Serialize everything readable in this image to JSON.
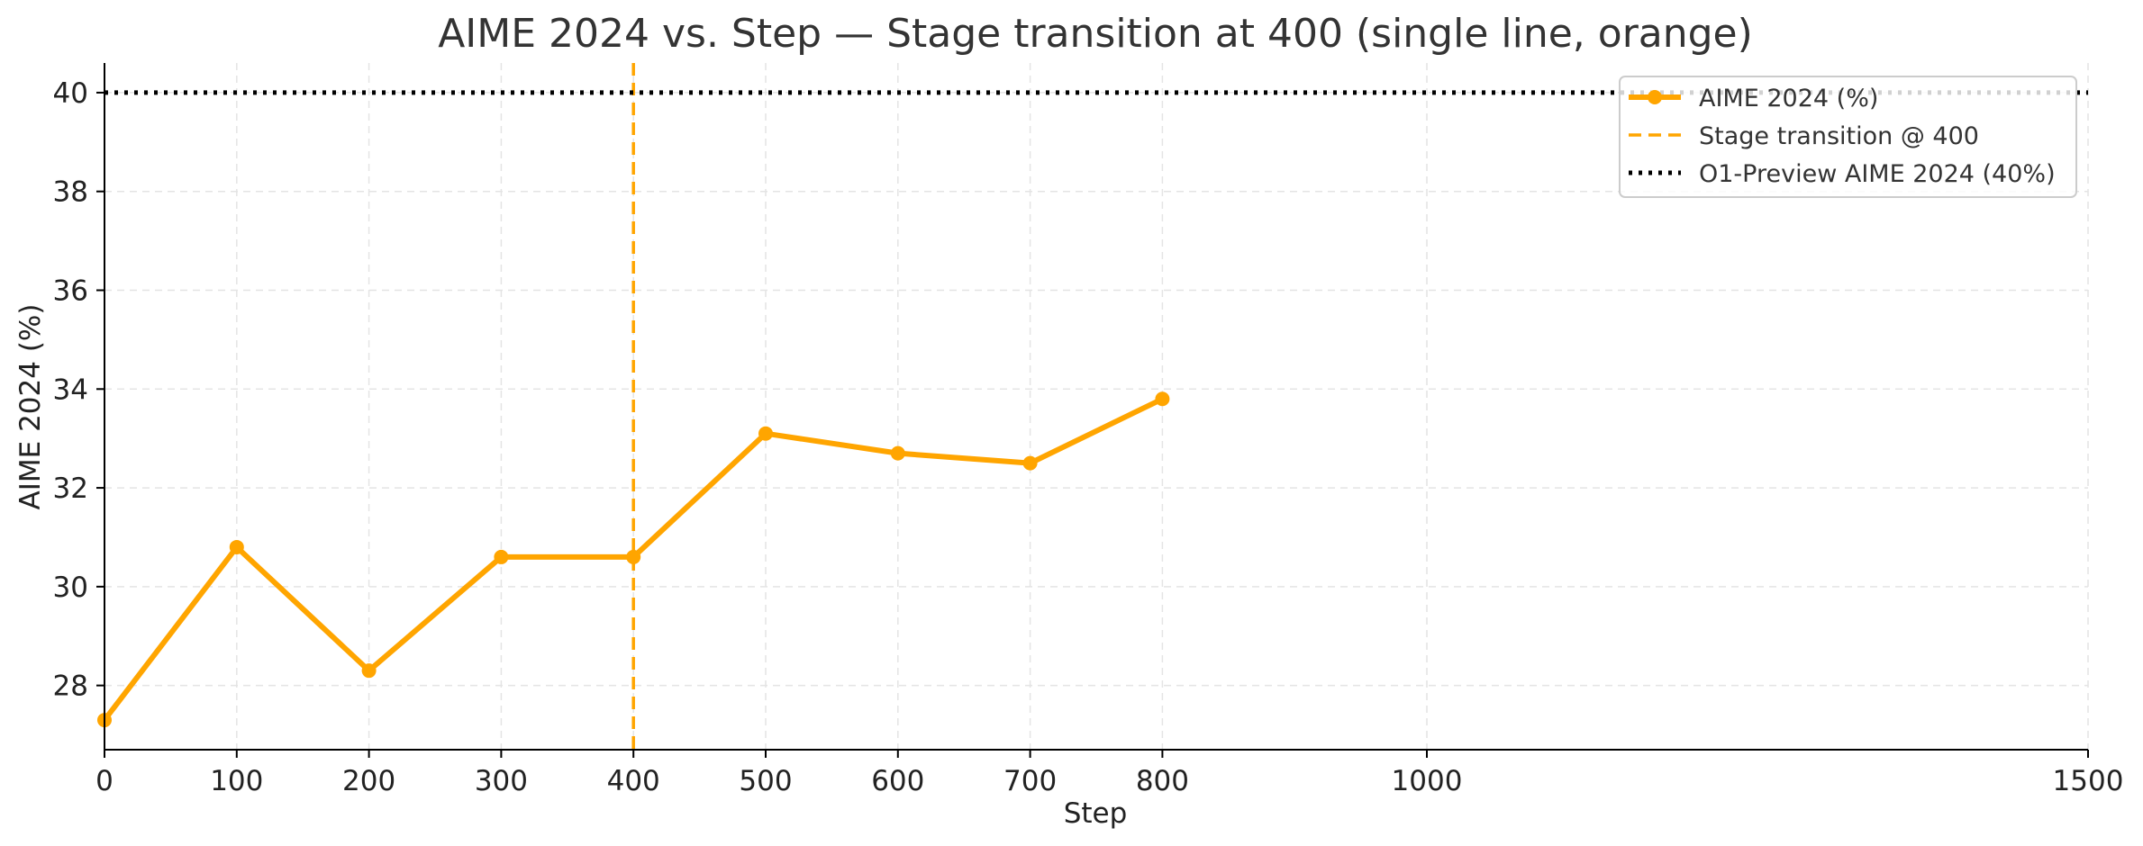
{
  "chart_data": {
    "type": "line",
    "title": "AIME 2024 vs. Step — Stage transition at 400 (single line, orange)",
    "xlabel": "Step",
    "ylabel": "AIME 2024 (%)",
    "xlim": [
      0,
      1500
    ],
    "ylim": [
      26.7,
      40.6
    ],
    "x_ticks": [
      0,
      100,
      200,
      300,
      400,
      500,
      600,
      700,
      800,
      1000,
      1500
    ],
    "y_ticks": [
      28,
      30,
      32,
      34,
      36,
      38,
      40
    ],
    "grid": true,
    "legend_position": "top-right",
    "colors": {
      "series": "#FFA500",
      "reference": "#000000",
      "grid": "#e4e4e4"
    },
    "series": [
      {
        "name": "AIME 2024 (%)",
        "x": [
          0,
          100,
          200,
          300,
          400,
          500,
          600,
          700,
          800
        ],
        "values": [
          27.3,
          30.8,
          28.3,
          30.6,
          30.6,
          33.1,
          32.7,
          32.5,
          33.8
        ],
        "style": "solid-with-markers"
      }
    ],
    "annotations": [
      {
        "type": "vline",
        "x": 400,
        "label": "Stage transition @ 400",
        "style": "dashed",
        "color": "#FFA500"
      },
      {
        "type": "hline",
        "y": 40,
        "label": "O1-Preview AIME 2024 (40%)",
        "style": "dotted",
        "color": "#000000"
      }
    ]
  }
}
